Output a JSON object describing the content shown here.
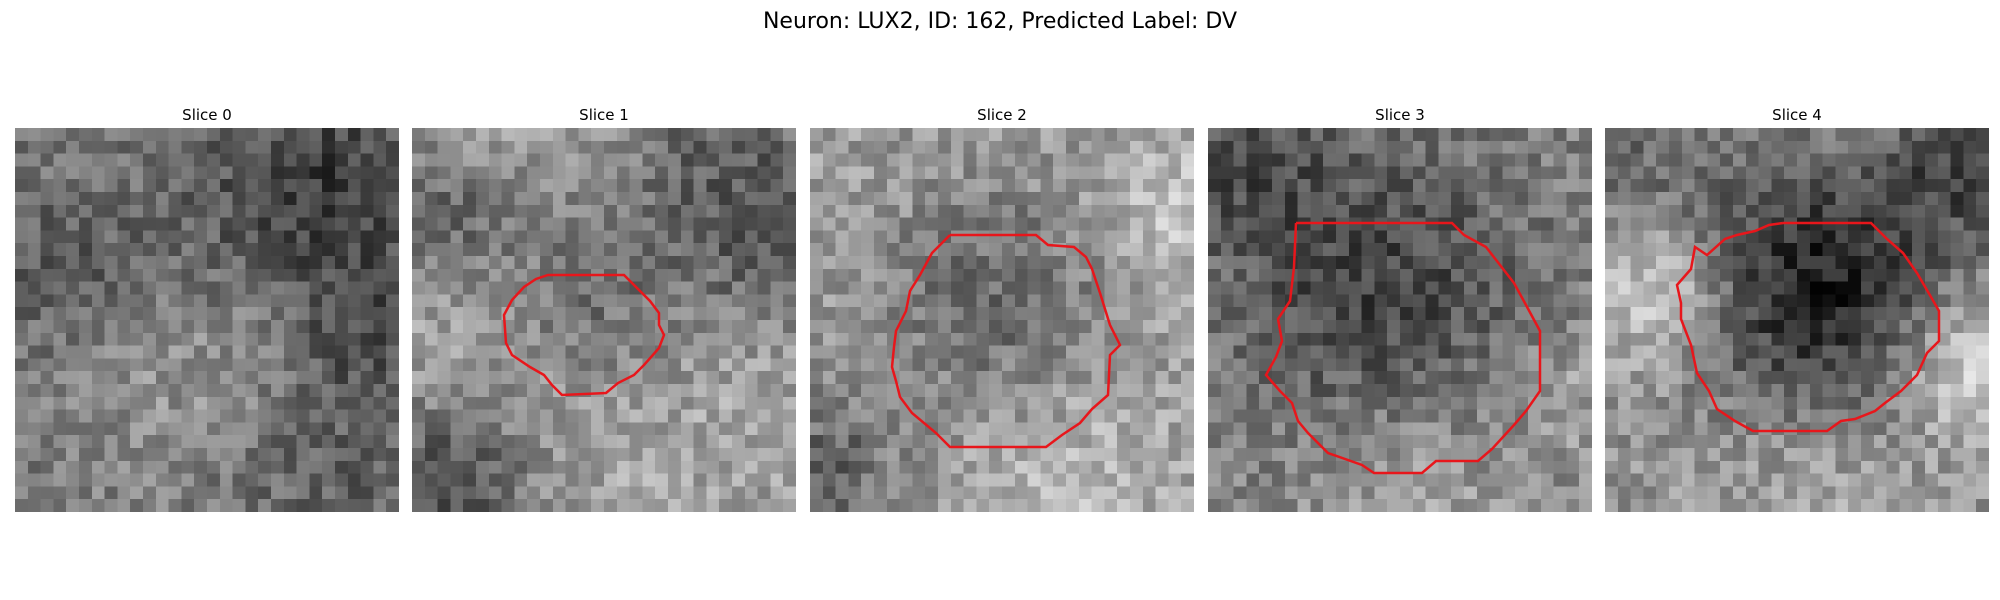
{
  "figure": {
    "title": "Neuron: LUX2, ID: 162, Predicted Label: DV"
  },
  "colors": {
    "contour": "#e8161b",
    "colormap": "gray"
  },
  "panels": [
    {
      "title": "Slice 0",
      "has_contour": false
    },
    {
      "title": "Slice 1",
      "has_contour": true
    },
    {
      "title": "Slice 2",
      "has_contour": true
    },
    {
      "title": "Slice 3",
      "has_contour": true
    },
    {
      "title": "Slice 4",
      "has_contour": true
    }
  ]
}
